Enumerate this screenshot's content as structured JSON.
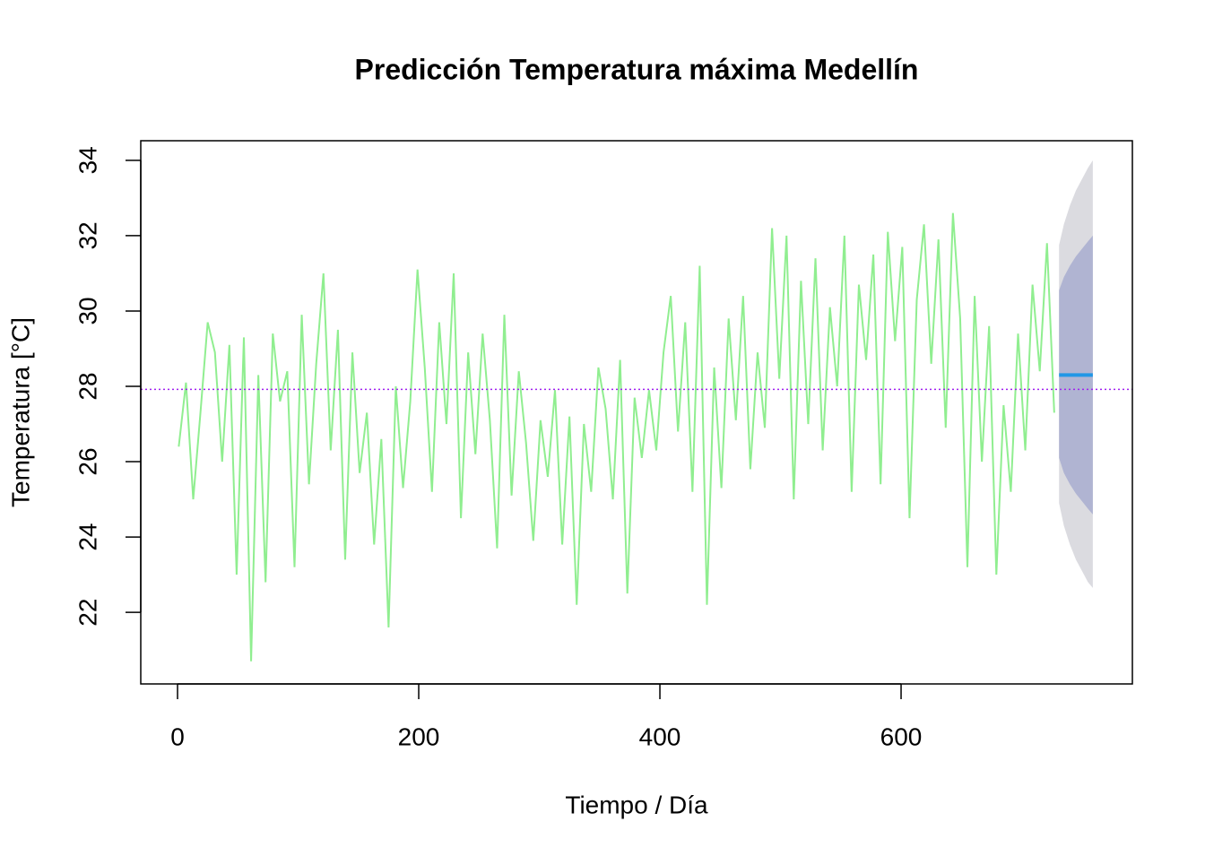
{
  "chart_data": {
    "type": "line",
    "title": "Predicción Temperatura máxima Medellín",
    "x_label": "Tiempo / Día",
    "y_label": "Temperatura [°C]",
    "xlim": [
      -30.5,
      791.8
    ],
    "ylim": [
      20.1,
      34.52
    ],
    "xticks": [
      0,
      200,
      400,
      600
    ],
    "yticks": [
      22,
      24,
      26,
      28,
      30,
      32,
      34
    ],
    "hline": 27.92,
    "hline_color": "#a020f0",
    "series": [
      {
        "color": "#90ee90",
        "x": [
          1,
          7,
          13,
          19,
          25,
          31,
          37,
          43,
          49,
          55,
          61,
          67,
          73,
          79,
          85,
          91,
          97,
          103,
          109,
          115,
          121,
          127,
          133,
          139,
          145,
          151,
          157,
          163,
          169,
          175,
          181,
          187,
          193,
          199,
          205,
          211,
          217,
          223,
          229,
          235,
          241,
          247,
          253,
          259,
          265,
          271,
          277,
          283,
          289,
          295,
          301,
          307,
          313,
          319,
          325,
          331,
          337,
          343,
          349,
          355,
          361,
          367,
          373,
          379,
          385,
          391,
          397,
          403,
          409,
          415,
          421,
          427,
          433,
          439,
          445,
          451,
          457,
          463,
          469,
          475,
          481,
          487,
          493,
          499,
          505,
          511,
          517,
          523,
          529,
          535,
          541,
          547,
          553,
          559,
          565,
          571,
          577,
          583,
          589,
          595,
          601,
          607,
          613,
          619,
          625,
          631,
          637,
          643,
          649,
          655,
          661,
          667,
          673,
          679,
          685,
          691,
          697,
          703,
          709,
          715,
          721,
          727
        ],
        "values": [
          26.4,
          28.1,
          25.0,
          27.3,
          29.7,
          28.9,
          26.0,
          29.1,
          23.0,
          29.3,
          20.7,
          28.3,
          22.8,
          29.4,
          27.6,
          28.4,
          23.2,
          29.9,
          25.4,
          28.6,
          31.0,
          26.3,
          29.5,
          23.4,
          28.9,
          25.7,
          27.3,
          23.8,
          26.6,
          21.6,
          28.0,
          25.3,
          27.6,
          31.1,
          28.5,
          25.2,
          29.7,
          27.0,
          31.0,
          24.5,
          28.9,
          26.2,
          29.4,
          27.1,
          23.7,
          29.9,
          25.1,
          28.4,
          26.5,
          23.9,
          27.1,
          25.6,
          27.9,
          23.8,
          27.2,
          22.2,
          27.0,
          25.2,
          28.5,
          27.4,
          25.0,
          28.7,
          22.5,
          27.7,
          26.1,
          27.9,
          26.3,
          28.9,
          30.4,
          26.8,
          29.7,
          25.2,
          31.2,
          22.2,
          28.5,
          25.3,
          29.8,
          27.1,
          30.4,
          25.8,
          28.9,
          26.9,
          32.2,
          28.2,
          32.0,
          25.0,
          30.8,
          27.0,
          31.4,
          26.3,
          30.1,
          28.0,
          32.0,
          25.2,
          30.7,
          28.7,
          31.5,
          25.4,
          32.1,
          29.2,
          31.7,
          24.5,
          30.3,
          32.3,
          28.6,
          31.9,
          26.9,
          32.6,
          29.8,
          23.2,
          30.4,
          26.0,
          29.6,
          23.0,
          27.5,
          25.2,
          29.4,
          26.3,
          30.7,
          28.4,
          31.8,
          27.3
        ]
      }
    ],
    "forecast": {
      "x": [
        731,
        735,
        740,
        745,
        750,
        755,
        759
      ],
      "mean": [
        28.3,
        28.3,
        28.3,
        28.3,
        28.3,
        28.3,
        28.3
      ],
      "lower80": [
        26.1,
        25.7,
        25.4,
        25.15,
        24.95,
        24.75,
        24.6
      ],
      "upper80": [
        30.55,
        30.9,
        31.2,
        31.45,
        31.65,
        31.85,
        32.0
      ],
      "lower95": [
        24.9,
        24.3,
        23.8,
        23.4,
        23.1,
        22.8,
        22.65
      ],
      "upper95": [
        31.75,
        32.3,
        32.8,
        33.2,
        33.5,
        33.8,
        34.0
      ],
      "mean_color": "#2297e6",
      "band80_color": "#b0b4d2",
      "band95_color": "#dbdbe0"
    }
  }
}
